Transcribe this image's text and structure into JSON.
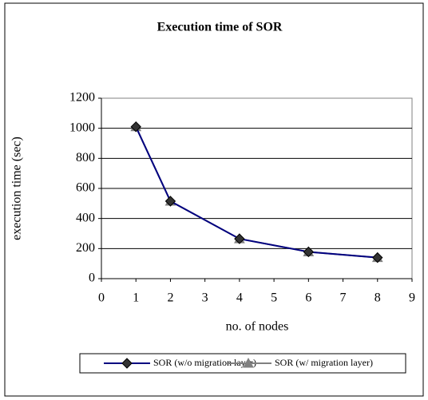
{
  "chart_data": {
    "type": "line",
    "title": "Execution time of SOR",
    "x_label": "no. of nodes",
    "y_label": "execution time (sec)",
    "x": [
      1,
      2,
      4,
      6,
      8
    ],
    "series": [
      {
        "name": "SOR (w/o migration layer)",
        "color": "#000080",
        "marker": "diamond",
        "values": [
          1010,
          515,
          265,
          178,
          140
        ]
      },
      {
        "name": "SOR (w/ migration layer)",
        "color": "#808080",
        "marker": "triangle",
        "values": [
          1010,
          515,
          265,
          178,
          140
        ]
      }
    ],
    "xlim": [
      0,
      9
    ],
    "xticks": [
      0,
      1,
      2,
      3,
      4,
      5,
      6,
      7,
      8,
      9
    ],
    "ylim": [
      0,
      1200
    ],
    "yticks": [
      0,
      200,
      400,
      600,
      800,
      1000,
      1200
    ],
    "grid": true,
    "legend": "bottom"
  }
}
